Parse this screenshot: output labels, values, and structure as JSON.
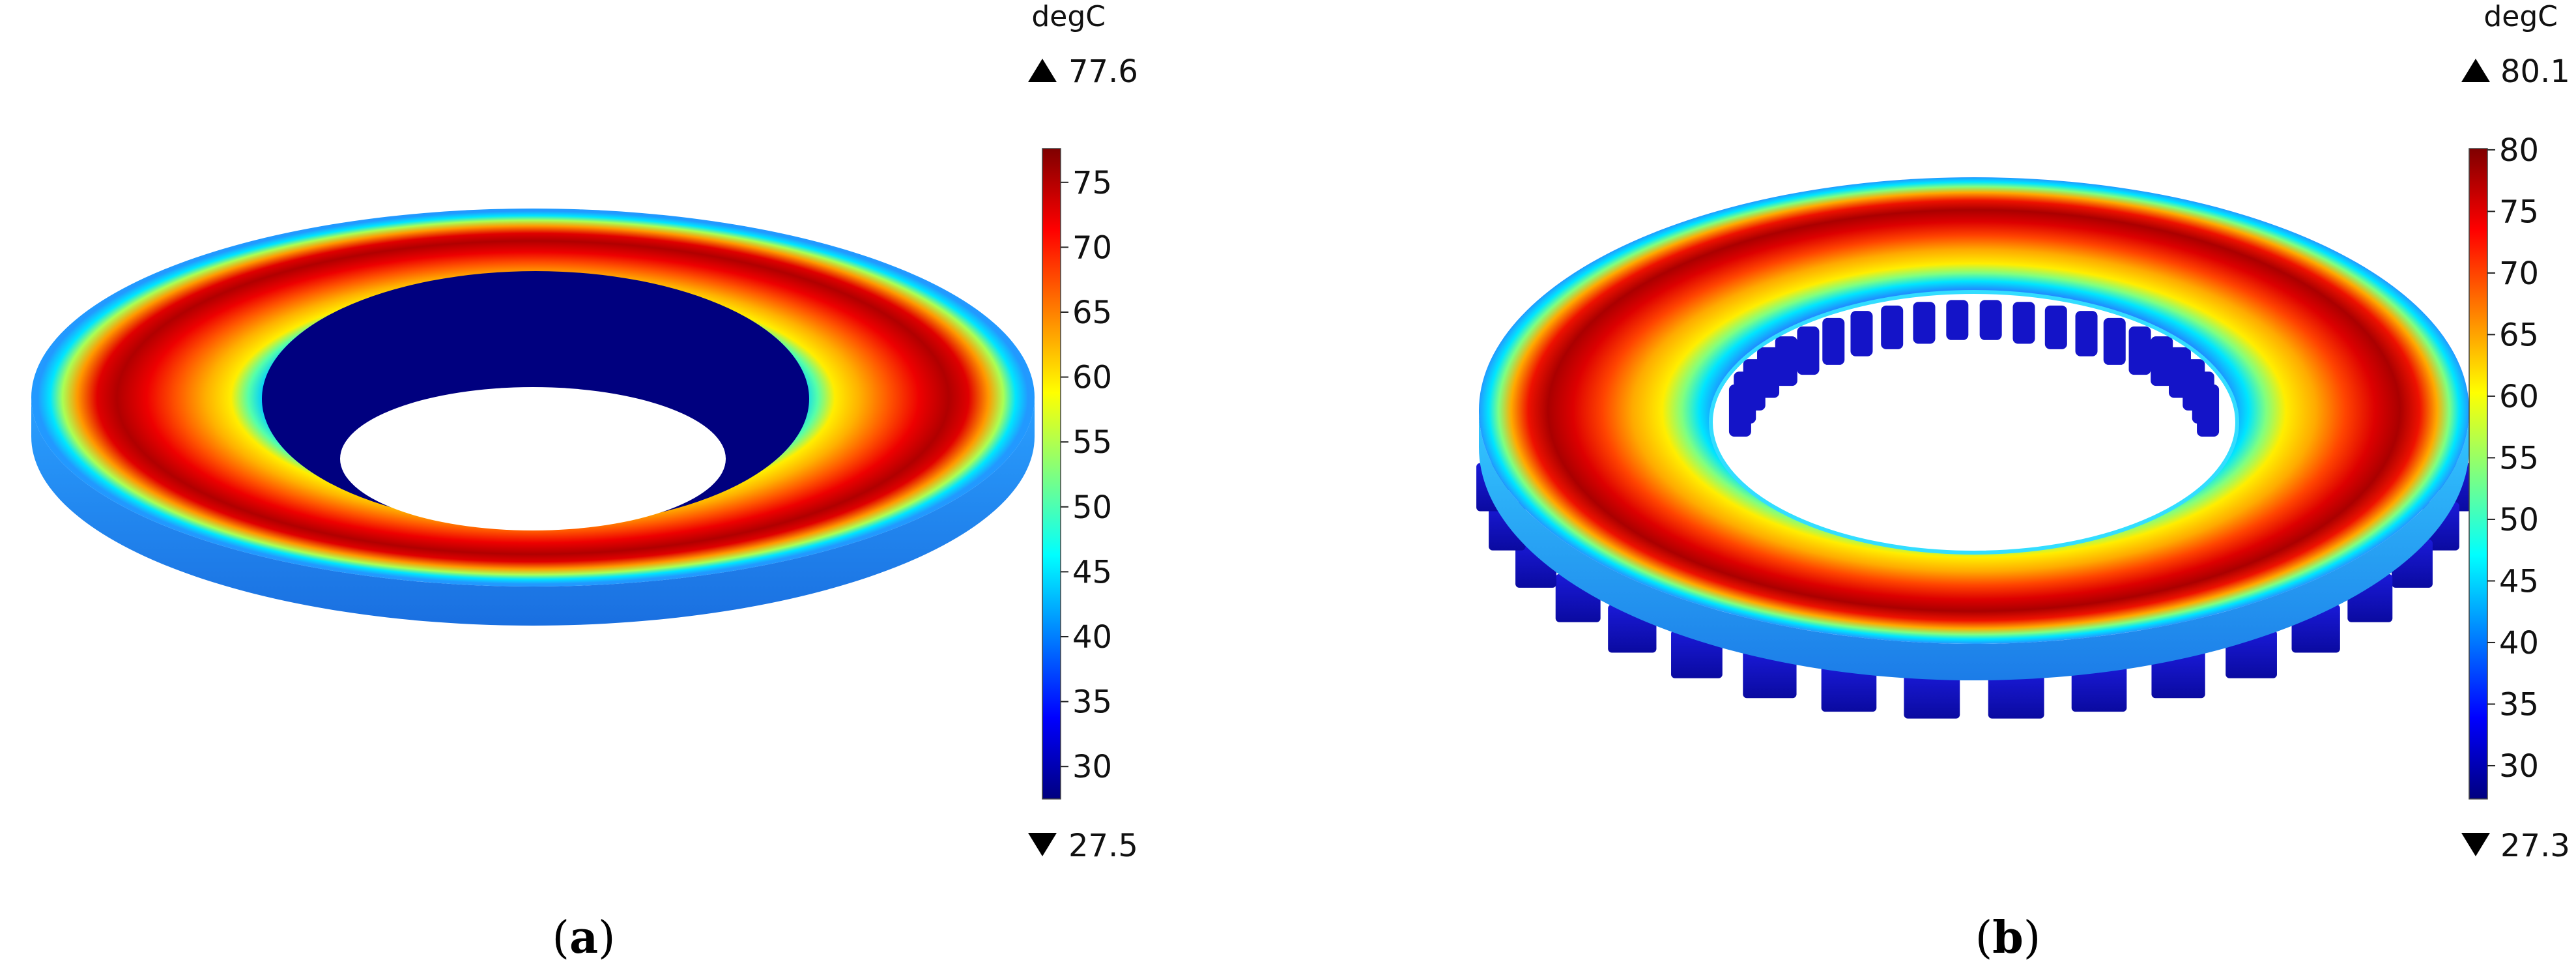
{
  "panels": [
    {
      "id": "a",
      "caption_open": "(",
      "caption_letter": "a",
      "caption_close": ")",
      "unit": "degC",
      "max": "77.6",
      "min": "27.5",
      "range": [
        27.5,
        77.6
      ],
      "ticks": [
        30,
        35,
        40,
        45,
        50,
        55,
        60,
        65,
        70,
        75
      ],
      "tick_labels": [
        "30",
        "35",
        "40",
        "45",
        "50",
        "55",
        "60",
        "65",
        "70",
        "75"
      ],
      "colormap": "jet"
    },
    {
      "id": "b",
      "caption_open": "(",
      "caption_letter": "b",
      "caption_close": ")",
      "unit": "degC",
      "max": "80.1",
      "min": "27.3",
      "range": [
        27.3,
        80.1
      ],
      "ticks": [
        30,
        35,
        40,
        45,
        50,
        55,
        60,
        65,
        70,
        75,
        80
      ],
      "tick_labels": [
        "30",
        "35",
        "40",
        "45",
        "50",
        "55",
        "60",
        "65",
        "70",
        "75",
        "80"
      ],
      "colormap": "jet"
    }
  ],
  "colors": {
    "jet_stops": [
      "#00007f",
      "#0000ff",
      "#007fff",
      "#00ffff",
      "#7fff7f",
      "#ffff00",
      "#ff7f00",
      "#ff0000",
      "#7f0000"
    ]
  }
}
